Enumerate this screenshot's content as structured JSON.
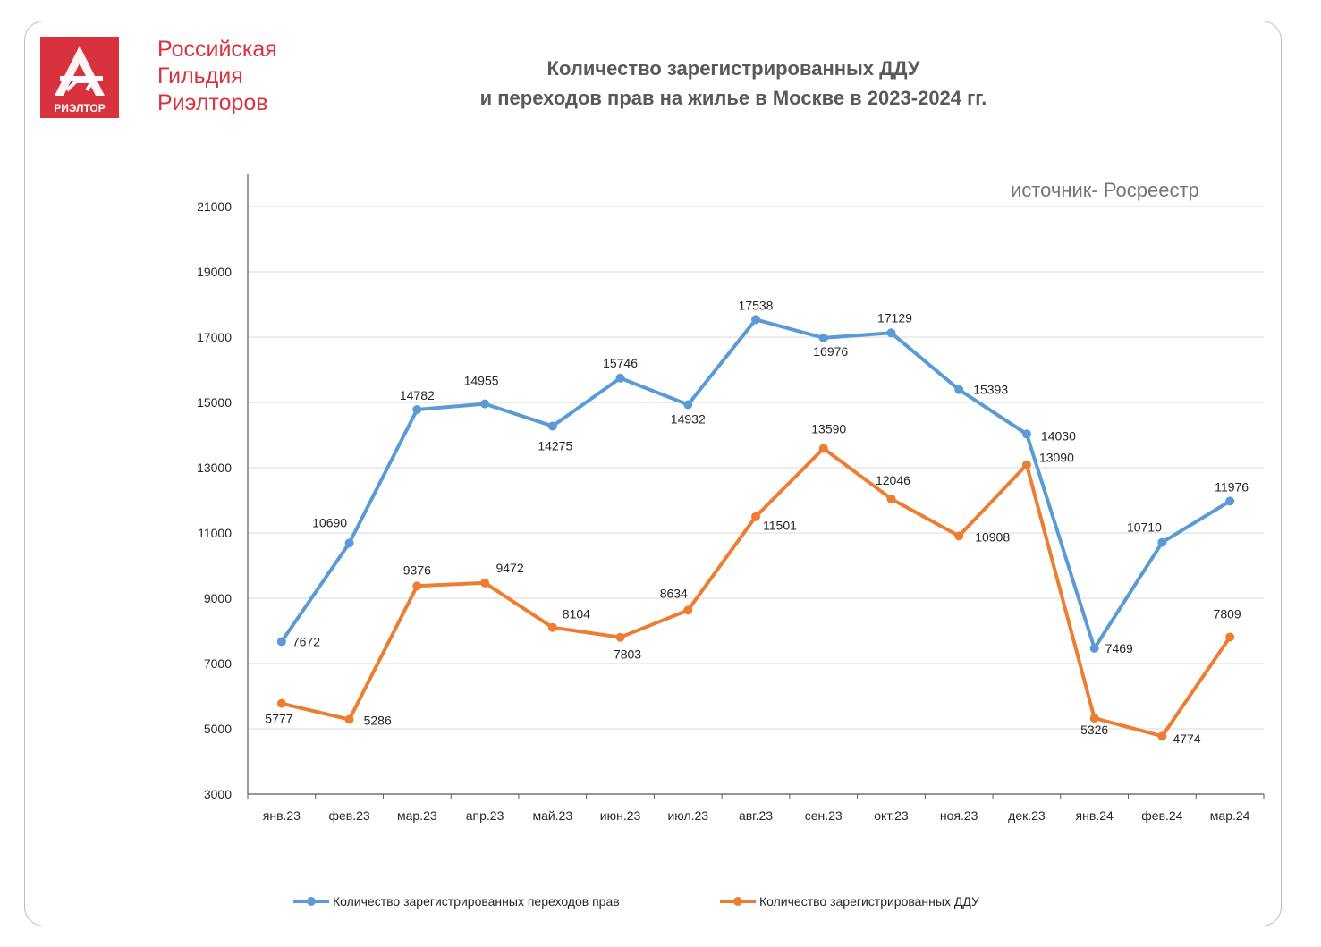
{
  "header": {
    "org_name": [
      "Российская",
      "Гильдия",
      "Риэлторов"
    ],
    "logo_text": "РИЭЛТОР"
  },
  "source_note": "источник- Росреестр",
  "colors": {
    "series1": "#5b9bd5",
    "series2": "#ed7d31",
    "brand": "#d9323f",
    "grid": "#d9d9d9"
  },
  "chart_data": {
    "type": "line",
    "title": [
      "Количество зарегистрированных ДДУ",
      "и переходов прав на жилье в  Москве в 2023-2024 гг."
    ],
    "categories": [
      "янв.23",
      "фев.23",
      "мар.23",
      "апр.23",
      "май.23",
      "июн.23",
      "июл.23",
      "авг.23",
      "сен.23",
      "окт.23",
      "ноя.23",
      "дек.23",
      "янв.24",
      "фев.24",
      "мар.24"
    ],
    "ylim": [
      3000,
      22000
    ],
    "yticks": [
      3000,
      5000,
      7000,
      9000,
      11000,
      13000,
      15000,
      17000,
      19000,
      21000
    ],
    "grid": true,
    "legend_position": "bottom",
    "series": [
      {
        "name": "Количество зарегистрированных переходов прав",
        "values": [
          7672,
          10690,
          14782,
          14955,
          14275,
          15746,
          14932,
          17538,
          16976,
          17129,
          15393,
          14030,
          7469,
          10710,
          11976
        ]
      },
      {
        "name": "Количество зарегистрированных ДДУ",
        "values": [
          5777,
          5286,
          9376,
          9472,
          8104,
          7803,
          8634,
          11501,
          13590,
          12046,
          10908,
          13090,
          5326,
          4774,
          7809
        ]
      }
    ]
  }
}
